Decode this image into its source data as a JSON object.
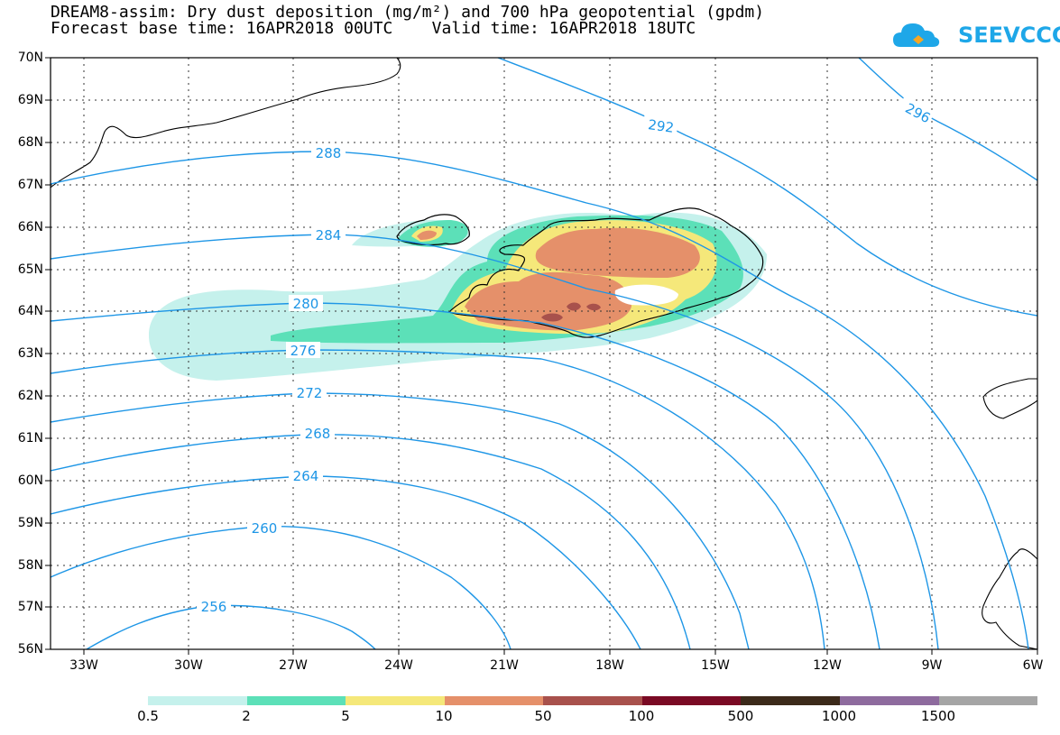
{
  "header": {
    "title_line1": "DREAM8-assim: Dry dust deposition (mg/m²) and 700 hPa geopotential (gpdm)",
    "title_line2": "Forecast base time: 16APR2018 00UTC    Valid time: 16APR2018 18UTC"
  },
  "logo": {
    "text": "SEEVCCC",
    "icon": "cloud-icon"
  },
  "map": {
    "lat_labels": [
      "70N",
      "69N",
      "68N",
      "67N",
      "66N",
      "65N",
      "64N",
      "63N",
      "62N",
      "61N",
      "60N",
      "59N",
      "58N",
      "57N",
      "56N"
    ],
    "lon_labels": [
      "33W",
      "30W",
      "27W",
      "24W",
      "21W",
      "18W",
      "15W",
      "12W",
      "9W",
      "6W"
    ],
    "contour_labels": [
      "292",
      "296",
      "288",
      "284",
      "280",
      "276",
      "272",
      "268",
      "264",
      "260",
      "256"
    ],
    "contour_color": "#1e96e6",
    "region": "Iceland"
  },
  "legend": {
    "labels": [
      "0.5",
      "2",
      "5",
      "10",
      "50",
      "100",
      "500",
      "1000",
      "1500"
    ],
    "colors": [
      "#c5f1ec",
      "#5ce0b8",
      "#f5e87a",
      "#e5906a",
      "#a8514c",
      "#7a0a24",
      "#3c2a1a",
      "#8e6b9e",
      "#a5a5a5"
    ]
  }
}
